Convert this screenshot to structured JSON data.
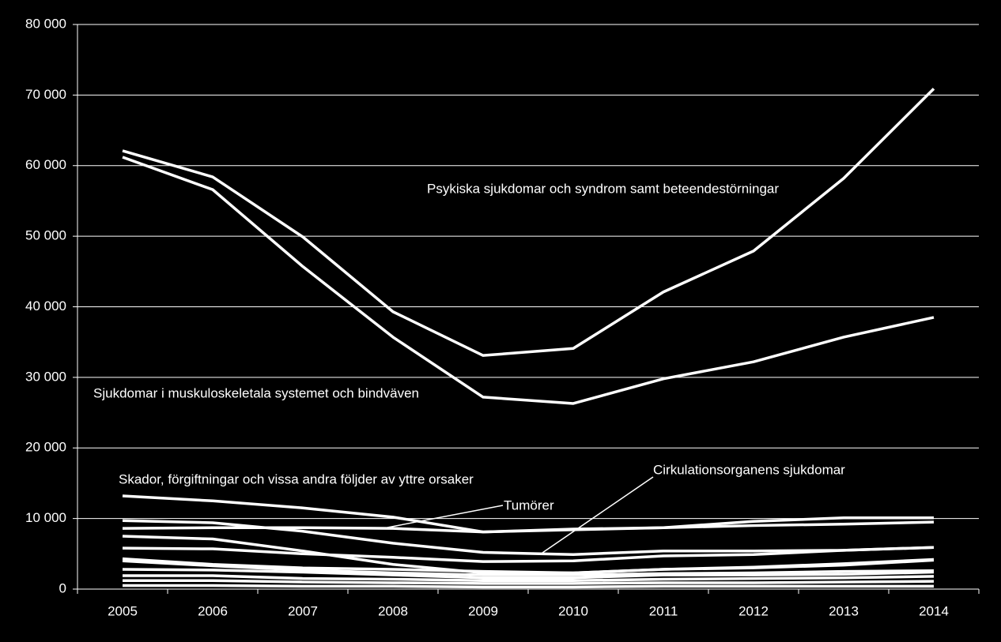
{
  "chart_data": {
    "type": "line",
    "categories": [
      "2005",
      "2006",
      "2007",
      "2008",
      "2009",
      "2010",
      "2011",
      "2012",
      "2013",
      "2014"
    ],
    "color": "#ffffff",
    "grid": true,
    "ylim": [
      0,
      80000
    ],
    "yticks": [
      {
        "value": 0,
        "label": "0"
      },
      {
        "value": 10000,
        "label": "10 000"
      },
      {
        "value": 20000,
        "label": "20 000"
      },
      {
        "value": 30000,
        "label": "30 000"
      },
      {
        "value": 40000,
        "label": "40 000"
      },
      {
        "value": 50000,
        "label": "50 000"
      },
      {
        "value": 60000,
        "label": "60 000"
      },
      {
        "value": 70000,
        "label": "70 000"
      },
      {
        "value": 80000,
        "label": "80 000"
      }
    ],
    "series": [
      {
        "name": "Psykiska sjukdomar och syndrom samt beteendestörningar",
        "values": [
          62100,
          58400,
          49900,
          39300,
          33100,
          34100,
          42100,
          47900,
          58200,
          70900
        ]
      },
      {
        "name": "Sjukdomar  i muskuloskeletala systemet och bindväven",
        "values": [
          61200,
          56600,
          45700,
          35700,
          27200,
          26300,
          29800,
          32200,
          35700,
          38500
        ]
      },
      {
        "name": "Skador, förgiftningar och vissa andra följder av yttre orsaker",
        "values": [
          13200,
          12500,
          11500,
          10200,
          8100,
          8500,
          8700,
          9600,
          10100,
          10100
        ]
      },
      {
        "name": "Tumörer",
        "values": [
          8600,
          8700,
          8700,
          8600,
          8100,
          8400,
          8700,
          9000,
          9200,
          9500
        ]
      },
      {
        "name": "Cirkulationsorganens sjukdomar",
        "values": [
          9700,
          9400,
          8200,
          6500,
          5200,
          4900,
          5400,
          5400,
          5500,
          5900
        ]
      },
      {
        "values": [
          5800,
          5700,
          5000,
          4500,
          3900,
          4000,
          4700,
          4900,
          5500,
          5900
        ]
      },
      {
        "values": [
          7500,
          7100,
          5400,
          3500,
          2300,
          2300,
          2800,
          3100,
          3600,
          4200
        ]
      },
      {
        "values": [
          4300,
          3500,
          3000,
          2800,
          2500,
          2300,
          2800,
          3000,
          3400,
          4100
        ]
      },
      {
        "values": [
          4000,
          3300,
          2700,
          2300,
          2000,
          2000,
          2200,
          2300,
          2500,
          2600
        ]
      },
      {
        "values": [
          2800,
          2700,
          2400,
          2000,
          1600,
          1600,
          2000,
          2000,
          2100,
          2400
        ]
      },
      {
        "values": [
          1900,
          1900,
          1500,
          1400,
          1200,
          1200,
          1400,
          1500,
          1600,
          1800
        ]
      },
      {
        "values": [
          1200,
          1200,
          1000,
          900,
          800,
          800,
          900,
          900,
          1000,
          1100
        ]
      },
      {
        "values": [
          500,
          500,
          400,
          400,
          300,
          300,
          400,
          400,
          400,
          400
        ]
      }
    ]
  }
}
